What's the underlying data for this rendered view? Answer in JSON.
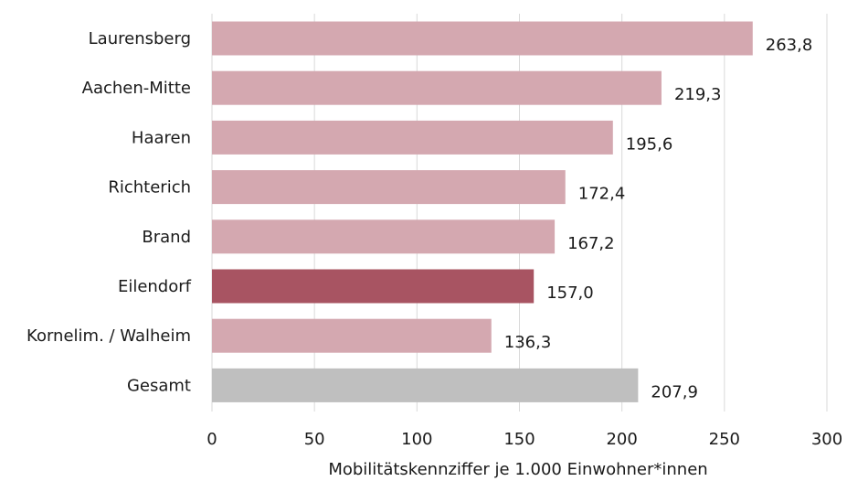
{
  "chart_data": {
    "type": "bar",
    "orientation": "horizontal",
    "categories": [
      "Laurensberg",
      "Aachen-Mitte",
      "Haaren",
      "Richterich",
      "Brand",
      "Eilendorf",
      "Kornelim. / Walheim",
      "Gesamt"
    ],
    "values": [
      263.8,
      219.3,
      195.6,
      172.4,
      167.2,
      157.0,
      136.3,
      207.9
    ],
    "value_labels": [
      "263,8",
      "219,3",
      "195,6",
      "172,4",
      "167,2",
      "157,0",
      "136,3",
      "207,9"
    ],
    "bar_colors": [
      "#d4a8b0",
      "#d4a8b0",
      "#d4a8b0",
      "#d4a8b0",
      "#d4a8b0",
      "#a85462",
      "#d4a8b0",
      "#bfbfbf"
    ],
    "xlabel": "Mobilitätskennziffer je 1.000 Einwohner*innen",
    "xlim": [
      0,
      300
    ],
    "xticks": [
      0,
      50,
      100,
      150,
      200,
      250,
      300
    ],
    "grid": "vertical"
  }
}
